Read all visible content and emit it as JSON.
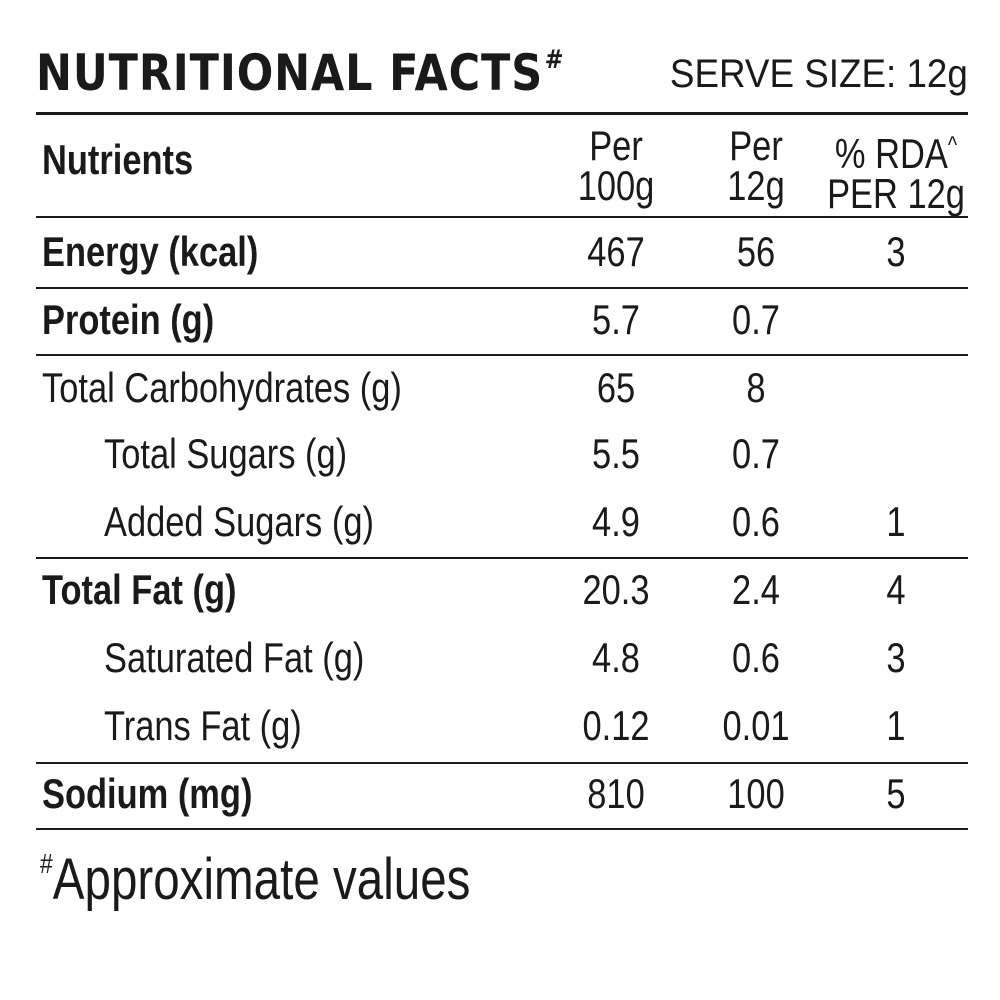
{
  "header": {
    "title": "NUTRITIONAL FACTS",
    "title_mark": "#",
    "serve_size": "SERVE SIZE: 12g"
  },
  "columns": {
    "nutrients": "Nutrients",
    "per100_line1": "Per",
    "per100_line2": "100g",
    "per12_line1": "Per",
    "per12_line2": "12g",
    "rda_line1": "% RDA",
    "rda_mark": "^",
    "rda_line2": "PER 12g"
  },
  "rows": [
    {
      "name": "Energy (kcal)",
      "per100": "467",
      "per12": "56",
      "rda": "3"
    },
    {
      "name": "Protein (g)",
      "per100": "5.7",
      "per12": "0.7",
      "rda": ""
    },
    {
      "name": "Total Carbohydrates (g)",
      "per100": "65",
      "per12": "8",
      "rda": ""
    },
    {
      "name": "Total Sugars (g)",
      "per100": "5.5",
      "per12": "0.7",
      "rda": ""
    },
    {
      "name": "Added Sugars (g)",
      "per100": "4.9",
      "per12": "0.6",
      "rda": "1"
    },
    {
      "name": "Total Fat (g)",
      "per100": "20.3",
      "per12": "2.4",
      "rda": "4"
    },
    {
      "name": "Saturated Fat (g)",
      "per100": "4.8",
      "per12": "0.6",
      "rda": "3"
    },
    {
      "name": "Trans Fat (g)",
      "per100": "0.12",
      "per12": "0.01",
      "rda": "1"
    },
    {
      "name": "Sodium (mg)",
      "per100": "810",
      "per12": "100",
      "rda": "5"
    }
  ],
  "footnote": {
    "mark": "#",
    "text": "Approximate values"
  }
}
